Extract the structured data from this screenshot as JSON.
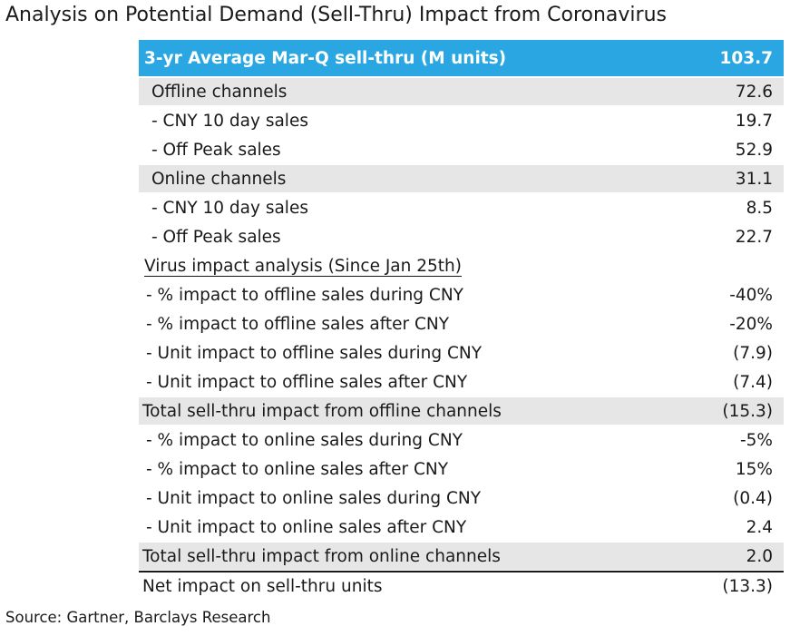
{
  "title": "Analysis on Potential Demand (Sell-Thru) Impact from Coronavirus",
  "header": {
    "label": "3-yr Average Mar-Q sell-thru (M units)",
    "value": "103.7"
  },
  "rows": [
    {
      "label": "Offline channels",
      "value": "72.6"
    },
    {
      "label": "- CNY 10 day sales",
      "value": "19.7"
    },
    {
      "label": "- Off Peak sales",
      "value": "52.9"
    },
    {
      "label": "Online channels",
      "value": "31.1"
    },
    {
      "label": "- CNY 10 day sales",
      "value": "8.5"
    },
    {
      "label": "- Off Peak sales",
      "value": "22.7"
    },
    {
      "label": "Virus impact analysis (Since Jan 25th)",
      "value": ""
    },
    {
      "label": "- % impact to offline sales during CNY",
      "value": "-40%"
    },
    {
      "label": "- % impact to offline sales after CNY",
      "value": "-20%"
    },
    {
      "label": "- Unit impact to offline sales during CNY",
      "value": "(7.9)"
    },
    {
      "label": "- Unit impact to offline sales after CNY",
      "value": "(7.4)"
    },
    {
      "label": "Total sell-thru impact from offline channels",
      "value": "(15.3)"
    },
    {
      "label": "- % impact to online sales during CNY",
      "value": "-5%"
    },
    {
      "label": "- % impact to online sales after CNY",
      "value": "15%"
    },
    {
      "label": "- Unit impact to online sales during CNY",
      "value": "(0.4)"
    },
    {
      "label": "- Unit impact to online sales after CNY",
      "value": "2.4"
    },
    {
      "label": "Total sell-thru impact from online channels",
      "value": "2.0"
    },
    {
      "label": "Net impact on sell-thru units",
      "value": "(13.3)"
    }
  ],
  "source": "Source: Gartner, Barclays Research",
  "colors": {
    "header_bg": "#2aa7e3",
    "shade_bg": "#e6e6e6"
  }
}
